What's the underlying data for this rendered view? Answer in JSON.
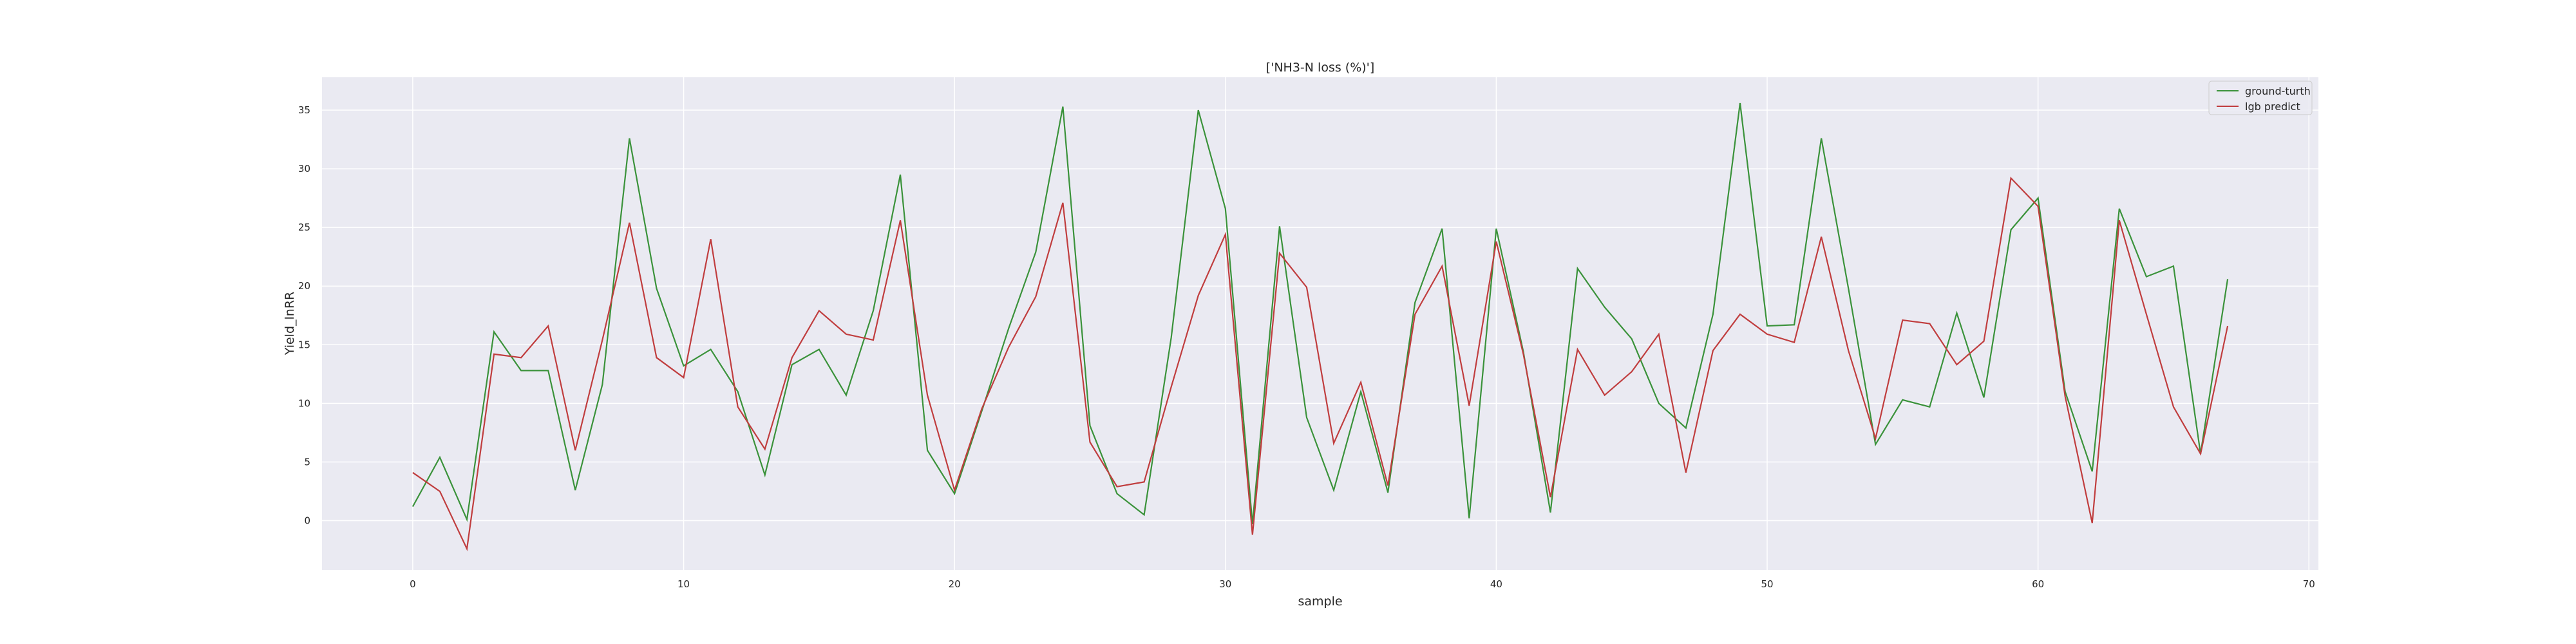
{
  "chart_data": {
    "type": "line",
    "title": "['NH3-N loss (%)']",
    "xlabel": "sample",
    "ylabel": "Yield_lnRR",
    "xlim": [
      -3.35,
      70.35
    ],
    "ylim": [
      -4.2,
      37.8
    ],
    "xticks": [
      0,
      10,
      20,
      30,
      40,
      50,
      60,
      70
    ],
    "yticks": [
      0,
      5,
      10,
      15,
      20,
      25,
      30,
      35
    ],
    "grid": true,
    "legend_position": "top-right",
    "x": [
      0,
      1,
      2,
      3,
      4,
      5,
      6,
      7,
      8,
      9,
      10,
      11,
      12,
      13,
      14,
      15,
      16,
      17,
      18,
      19,
      20,
      21,
      22,
      23,
      24,
      25,
      26,
      27,
      28,
      29,
      30,
      31,
      32,
      33,
      34,
      35,
      36,
      37,
      38,
      39,
      40,
      41,
      42,
      43,
      44,
      45,
      46,
      47,
      48,
      49,
      50,
      51,
      52,
      53,
      54,
      55,
      56,
      57,
      58,
      59,
      60,
      61,
      62,
      63,
      64,
      65,
      66,
      67
    ],
    "series": [
      {
        "name": "ground-turth",
        "color": "#3a923a",
        "values": [
          1.2,
          5.4,
          0.1,
          16.1,
          12.8,
          12.8,
          2.6,
          11.6,
          32.6,
          19.8,
          13.2,
          14.6,
          11.0,
          3.9,
          13.3,
          14.6,
          10.7,
          17.9,
          29.5,
          6.0,
          2.3,
          9.3,
          16.4,
          22.9,
          35.3,
          8.1,
          2.3,
          0.5,
          15.6,
          35.0,
          26.6,
          -0.3,
          25.1,
          8.8,
          2.6,
          11.0,
          2.4,
          18.6,
          24.9,
          0.2,
          24.9,
          14.4,
          0.7,
          21.5,
          18.2,
          15.5,
          10.0,
          7.9,
          17.6,
          35.6,
          16.6,
          16.7,
          32.6,
          19.8,
          6.5,
          10.3,
          9.7,
          17.7,
          10.5,
          24.8,
          27.5,
          11.0,
          4.2,
          26.6,
          20.8,
          21.7,
          5.7,
          20.6
        ]
      },
      {
        "name": "lgb predict",
        "color": "#c03d3e",
        "values": [
          4.1,
          2.5,
          -2.4,
          14.2,
          13.9,
          16.6,
          6.0,
          15.4,
          25.4,
          13.9,
          12.2,
          24.0,
          9.7,
          6.1,
          13.9,
          17.9,
          15.9,
          15.4,
          25.6,
          10.7,
          2.6,
          9.5,
          14.8,
          19.1,
          27.1,
          6.7,
          2.9,
          3.3,
          11.4,
          19.2,
          24.4,
          -1.2,
          22.8,
          19.9,
          6.6,
          11.8,
          3.0,
          17.6,
          21.7,
          9.8,
          23.8,
          14.2,
          2.0,
          14.6,
          10.7,
          12.7,
          15.9,
          4.1,
          14.5,
          17.6,
          15.9,
          15.2,
          24.2,
          14.5,
          7.0,
          17.1,
          16.8,
          13.3,
          15.3,
          29.2,
          26.8,
          10.6,
          -0.2,
          25.6,
          17.6,
          9.7,
          5.7,
          16.6
        ]
      }
    ]
  }
}
